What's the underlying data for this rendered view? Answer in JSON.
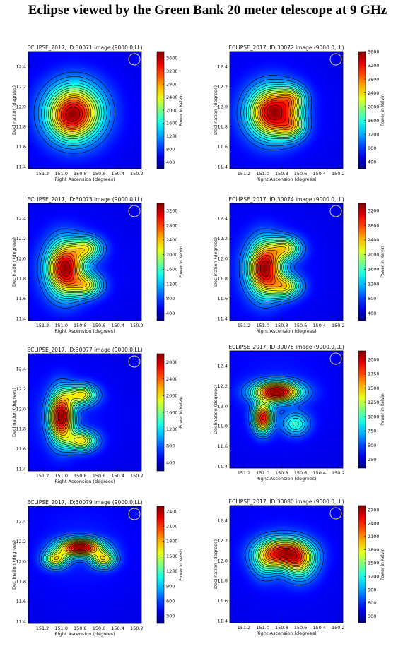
{
  "page_title": "Eclipse viewed by the Green Bank 20 meter telescope at 9 GHz",
  "chart_data": [
    {
      "type": "heatmap",
      "subtype": "contour",
      "title": "ECLIPSE_2017, ID:30071 image (9000.0,LL)",
      "xlabel": "Right Ascension (degrees)",
      "ylabel": "Declination (degrees)",
      "colorbar_label": "Power in Kelvin",
      "xticks": [
        "151.2",
        "151.0",
        "150.8",
        "150.6",
        "150.4",
        "150.2"
      ],
      "yticks": [
        "11.4",
        "11.6",
        "11.8",
        "12.0",
        "12.2",
        "12.4"
      ],
      "xlim": [
        151.35,
        150.15
      ],
      "ylim": [
        11.38,
        12.55
      ],
      "colorbar_ticks": [
        "400",
        "800",
        "1200",
        "1600",
        "2000",
        "2400",
        "2800",
        "3200",
        "3600"
      ],
      "colorbar_range": [
        200,
        3800
      ],
      "peak": 3800,
      "beam_circle": true,
      "blobs": [
        {
          "ra": 150.86,
          "dec": 11.94,
          "sra": 0.2,
          "sdec": 0.19,
          "amp": 1.0
        },
        {
          "ra": 150.95,
          "dec": 11.86,
          "sra": 0.12,
          "sdec": 0.12,
          "amp": 0.15
        }
      ]
    },
    {
      "type": "heatmap",
      "subtype": "contour",
      "title": "ECLIPSE_2017, ID:30072 image (9000.0,LL)",
      "xlabel": "Right Ascension (degrees)",
      "ylabel": "Declination (degrees)",
      "colorbar_label": "Power in Kelvin",
      "xticks": [
        "151.2",
        "151.0",
        "150.8",
        "150.6",
        "150.4",
        "150.2"
      ],
      "yticks": [
        "11.4",
        "11.6",
        "11.8",
        "12.0",
        "12.2",
        "12.4"
      ],
      "xlim": [
        151.35,
        150.15
      ],
      "ylim": [
        11.38,
        12.55
      ],
      "colorbar_ticks": [
        "400",
        "800",
        "1200",
        "1600",
        "2000",
        "2400",
        "2800",
        "3200",
        "3600"
      ],
      "colorbar_range": [
        200,
        3600
      ],
      "peak": 3600,
      "beam_circle": true,
      "blobs": [
        {
          "ra": 150.9,
          "dec": 11.94,
          "sra": 0.17,
          "sdec": 0.17,
          "amp": 1.0
        },
        {
          "ra": 150.68,
          "dec": 12.08,
          "sra": 0.1,
          "sdec": 0.09,
          "amp": 0.4
        },
        {
          "ra": 150.68,
          "dec": 11.8,
          "sra": 0.1,
          "sdec": 0.09,
          "amp": 0.4
        }
      ]
    },
    {
      "type": "heatmap",
      "subtype": "contour",
      "title": "ECLIPSE_2017, ID:30073 image (9000.0,LL)",
      "xlabel": "Right Ascension (degrees)",
      "ylabel": "Declination (degrees)",
      "colorbar_label": "Power in Kelvin",
      "xticks": [
        "151.2",
        "151.0",
        "150.8",
        "150.6",
        "150.4",
        "150.2"
      ],
      "yticks": [
        "11.4",
        "11.6",
        "11.8",
        "12.0",
        "12.2",
        "12.4"
      ],
      "xlim": [
        151.35,
        150.15
      ],
      "ylim": [
        11.38,
        12.55
      ],
      "colorbar_ticks": [
        "400",
        "800",
        "1200",
        "1600",
        "2000",
        "2400",
        "2800",
        "3200"
      ],
      "colorbar_range": [
        200,
        3400
      ],
      "peak": 3400,
      "beam_circle": true,
      "blobs": [
        {
          "ra": 150.96,
          "dec": 11.9,
          "sra": 0.13,
          "sdec": 0.18,
          "amp": 1.0
        },
        {
          "ra": 150.72,
          "dec": 12.1,
          "sra": 0.11,
          "sdec": 0.08,
          "amp": 0.5
        },
        {
          "ra": 150.72,
          "dec": 11.73,
          "sra": 0.11,
          "sdec": 0.08,
          "amp": 0.5
        }
      ]
    },
    {
      "type": "heatmap",
      "subtype": "contour",
      "title": "ECLIPSE_2017, ID:30074 image (9000.0,LL)",
      "xlabel": "Right Ascension (degrees)",
      "ylabel": "Declination (degrees)",
      "colorbar_label": "Power in Kelvin",
      "xticks": [
        "151.2",
        "151.0",
        "150.8",
        "150.6",
        "150.4",
        "150.2"
      ],
      "yticks": [
        "11.4",
        "11.6",
        "11.8",
        "12.0",
        "12.2",
        "12.4"
      ],
      "xlim": [
        151.35,
        150.15
      ],
      "ylim": [
        11.38,
        12.55
      ],
      "colorbar_ticks": [
        "400",
        "800",
        "1200",
        "1600",
        "2000",
        "2400",
        "2800",
        "3200"
      ],
      "colorbar_range": [
        200,
        3400
      ],
      "peak": 3400,
      "beam_circle": true,
      "blobs": [
        {
          "ra": 150.98,
          "dec": 11.9,
          "sra": 0.12,
          "sdec": 0.18,
          "amp": 1.0
        },
        {
          "ra": 150.75,
          "dec": 12.1,
          "sra": 0.11,
          "sdec": 0.08,
          "amp": 0.55
        },
        {
          "ra": 150.75,
          "dec": 11.72,
          "sra": 0.11,
          "sdec": 0.08,
          "amp": 0.55
        }
      ]
    },
    {
      "type": "heatmap",
      "subtype": "contour",
      "title": "ECLIPSE_2017, ID:30077 image (9000.0,LL)",
      "xlabel": "Right Ascension (degrees)",
      "ylabel": "Declination (degrees)",
      "colorbar_label": "Power in Kelvin",
      "xticks": [
        "151.2",
        "151.0",
        "150.8",
        "150.6",
        "150.4",
        "150.2"
      ],
      "yticks": [
        "11.4",
        "11.6",
        "11.8",
        "12.0",
        "12.2",
        "12.4"
      ],
      "xlim": [
        151.35,
        150.15
      ],
      "ylim": [
        11.38,
        12.55
      ],
      "colorbar_ticks": [
        "400",
        "800",
        "1200",
        "1600",
        "2000",
        "2400",
        "2800"
      ],
      "colorbar_range": [
        200,
        3000
      ],
      "peak": 3000,
      "beam_circle": true,
      "blobs": [
        {
          "ra": 151.0,
          "dec": 11.92,
          "sra": 0.09,
          "sdec": 0.17,
          "amp": 1.0
        },
        {
          "ra": 150.78,
          "dec": 12.14,
          "sra": 0.11,
          "sdec": 0.07,
          "amp": 0.6
        },
        {
          "ra": 150.78,
          "dec": 11.68,
          "sra": 0.11,
          "sdec": 0.07,
          "amp": 0.6
        }
      ]
    },
    {
      "type": "heatmap",
      "subtype": "contour",
      "title": "ECLIPSE_2017, ID:30078 image (9000.0,LL)",
      "xlabel": "Right Ascension (degrees)",
      "ylabel": "Declination (degrees)",
      "colorbar_label": "Power in Kelvin",
      "xticks": [
        "151.2",
        "151.0",
        "150.8",
        "150.6",
        "150.4",
        "150.2"
      ],
      "yticks": [
        "11.4",
        "11.6",
        "11.8",
        "12.0",
        "12.2",
        "12.4"
      ],
      "xlim": [
        151.35,
        150.15
      ],
      "ylim": [
        11.38,
        12.55
      ],
      "colorbar_ticks": [
        "250",
        "500",
        "750",
        "1000",
        "1250",
        "1500",
        "1750",
        "2000"
      ],
      "colorbar_range": [
        100,
        2150
      ],
      "peak": 2150,
      "beam_circle": true,
      "blobs": [
        {
          "ra": 150.85,
          "dec": 12.14,
          "sra": 0.17,
          "sdec": 0.07,
          "amp": 1.0
        },
        {
          "ra": 151.0,
          "dec": 11.88,
          "sra": 0.07,
          "sdec": 0.1,
          "amp": 0.9
        },
        {
          "ra": 150.65,
          "dec": 11.82,
          "sra": 0.1,
          "sdec": 0.08,
          "amp": 0.35
        }
      ]
    },
    {
      "type": "heatmap",
      "subtype": "contour",
      "title": "ECLIPSE_2017, ID:30079 image (9000.0,LL)",
      "xlabel": "Right Ascension (degrees)",
      "ylabel": "Declination (degrees)",
      "colorbar_label": "Power in Kelvin",
      "xticks": [
        "151.2",
        "151.0",
        "150.8",
        "150.6",
        "150.4",
        "150.2"
      ],
      "yticks": [
        "11.4",
        "11.6",
        "11.8",
        "12.0",
        "12.2",
        "12.4"
      ],
      "xlim": [
        151.35,
        150.15
      ],
      "ylim": [
        11.38,
        12.55
      ],
      "colorbar_ticks": [
        "300",
        "600",
        "900",
        "1200",
        "1500",
        "1800",
        "2100",
        "2400"
      ],
      "colorbar_range": [
        150,
        2500
      ],
      "peak": 2500,
      "beam_circle": true,
      "blobs": [
        {
          "ra": 150.8,
          "dec": 12.14,
          "sra": 0.16,
          "sdec": 0.06,
          "amp": 1.0
        },
        {
          "ra": 151.06,
          "dec": 12.02,
          "sra": 0.09,
          "sdec": 0.06,
          "amp": 0.6
        },
        {
          "ra": 150.55,
          "dec": 12.02,
          "sra": 0.09,
          "sdec": 0.06,
          "amp": 0.6
        }
      ]
    },
    {
      "type": "heatmap",
      "subtype": "contour",
      "title": "ECLIPSE_2017, ID:30080 image (9000.0,LL)",
      "xlabel": "Right Ascension (degrees)",
      "ylabel": "Declination (degrees)",
      "colorbar_label": "Power in Kelvin",
      "xticks": [
        "151.2",
        "151.0",
        "150.8",
        "150.6",
        "150.4",
        "150.2"
      ],
      "yticks": [
        "11.4",
        "11.6",
        "11.8",
        "12.0",
        "12.2",
        "12.4"
      ],
      "xlim": [
        151.35,
        150.15
      ],
      "ylim": [
        11.38,
        12.55
      ],
      "colorbar_ticks": [
        "300",
        "600",
        "900",
        "1200",
        "1500",
        "1800",
        "2100",
        "2400",
        "2700"
      ],
      "colorbar_range": [
        150,
        2800
      ],
      "peak": 2800,
      "beam_circle": true,
      "blobs": [
        {
          "ra": 150.78,
          "dec": 12.08,
          "sra": 0.18,
          "sdec": 0.1,
          "amp": 1.0
        },
        {
          "ra": 150.6,
          "dec": 11.97,
          "sra": 0.12,
          "sdec": 0.12,
          "amp": 0.5
        },
        {
          "ra": 150.98,
          "dec": 11.98,
          "sra": 0.1,
          "sdec": 0.12,
          "amp": 0.3
        }
      ]
    }
  ]
}
